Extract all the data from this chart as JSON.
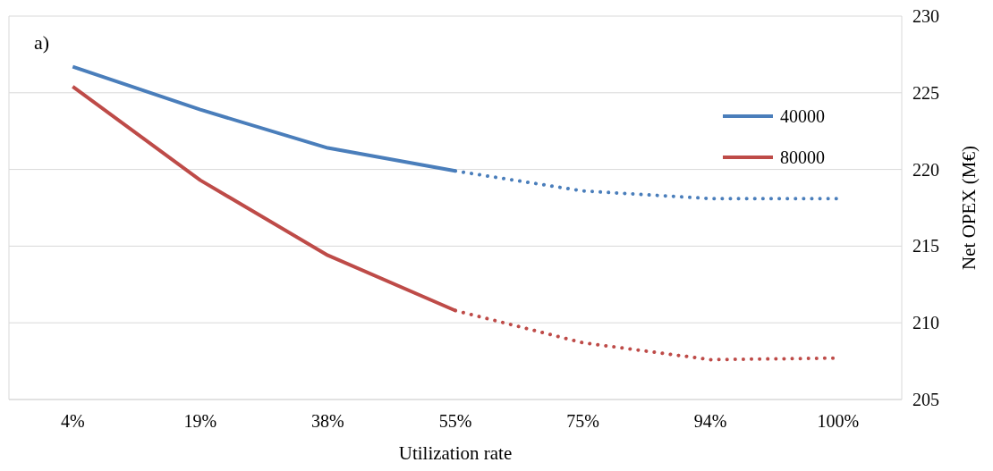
{
  "chart_data": {
    "type": "line",
    "xlabel": "Utilization  rate",
    "ylabel": "Net OPEX  (M€)",
    "annotations": [
      "a)"
    ],
    "categories": [
      "4%",
      "19%",
      "38%",
      "55%",
      "75%",
      "94%",
      "100%"
    ],
    "series": [
      {
        "name": "40000",
        "color": "#4a7ebb",
        "line_style": "solid",
        "values": [
          226.7,
          223.9,
          221.4,
          219.9,
          null,
          null,
          null
        ]
      },
      {
        "name": "80000",
        "color": "#be4b48",
        "line_style": "solid",
        "values": [
          225.4,
          219.3,
          214.4,
          210.8,
          null,
          null,
          null
        ]
      },
      {
        "color": "#4a7ebb",
        "line_style": "dotted",
        "values": [
          null,
          null,
          null,
          219.9,
          218.6,
          218.1,
          218.1
        ]
      },
      {
        "color": "#be4b48",
        "line_style": "dotted",
        "values": [
          null,
          null,
          null,
          210.8,
          208.7,
          207.6,
          207.7
        ]
      }
    ],
    "ylim": [
      205,
      230
    ],
    "yticks": [
      205,
      210,
      215,
      220,
      225,
      230
    ],
    "grid": "y",
    "legend": "top right",
    "marker": "none"
  }
}
